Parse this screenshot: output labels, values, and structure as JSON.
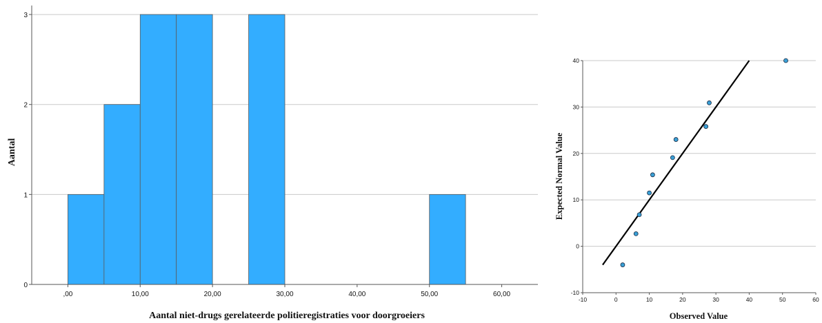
{
  "colors": {
    "bar_fill": "#33adff",
    "point_fill": "#3aa0d6",
    "line": "#000000",
    "grid": "#c9c9c9"
  },
  "chart_data": [
    {
      "type": "bar",
      "subtype": "histogram",
      "title": "",
      "xlabel": "Aantal niet-drugs gerelateerde politieregistraties voor doorgroeiers",
      "ylabel": "Aantal",
      "xlim": [
        -5,
        65
      ],
      "ylim": [
        0,
        3.1
      ],
      "x_ticks": [
        0,
        10,
        20,
        30,
        40,
        50,
        60
      ],
      "x_tick_labels": [
        ",00",
        "10,00",
        "20,00",
        "30,00",
        "40,00",
        "50,00",
        "60,00"
      ],
      "y_ticks": [
        0,
        1,
        2,
        3
      ],
      "y_tick_labels": [
        "0",
        "1",
        "2",
        "3"
      ],
      "grid": "horizontal",
      "bins": [
        {
          "from": 0,
          "to": 5,
          "count": 1
        },
        {
          "from": 5,
          "to": 10,
          "count": 2
        },
        {
          "from": 10,
          "to": 15,
          "count": 3
        },
        {
          "from": 15,
          "to": 20,
          "count": 3
        },
        {
          "from": 25,
          "to": 30,
          "count": 3
        },
        {
          "from": 50,
          "to": 55,
          "count": 1
        }
      ]
    },
    {
      "type": "scatter",
      "subtype": "normal-qq",
      "title": "",
      "xlabel": "Observed Value",
      "ylabel": "Expected Normal Value",
      "xlim": [
        -10,
        60
      ],
      "ylim": [
        -10,
        40
      ],
      "x_ticks": [
        -10,
        0,
        10,
        20,
        30,
        40,
        50,
        60
      ],
      "x_tick_labels": [
        "-10",
        "0",
        "10",
        "20",
        "30",
        "40",
        "50",
        "60"
      ],
      "y_ticks": [
        -10,
        0,
        10,
        20,
        30,
        40
      ],
      "y_tick_labels": [
        "-10",
        "0",
        "10",
        "20",
        "30",
        "40"
      ],
      "grid": "horizontal",
      "points": [
        {
          "x": 2,
          "y": -4
        },
        {
          "x": 6,
          "y": 2.7
        },
        {
          "x": 7,
          "y": 6.8
        },
        {
          "x": 10,
          "y": 11.5
        },
        {
          "x": 11,
          "y": 15.4
        },
        {
          "x": 17,
          "y": 19.1
        },
        {
          "x": 18,
          "y": 23
        },
        {
          "x": 27,
          "y": 25.8
        },
        {
          "x": 28,
          "y": 30.9
        },
        {
          "x": 51,
          "y": 40
        }
      ],
      "reference_line": {
        "from": [
          -4,
          -4
        ],
        "to": [
          40,
          40
        ]
      }
    }
  ]
}
